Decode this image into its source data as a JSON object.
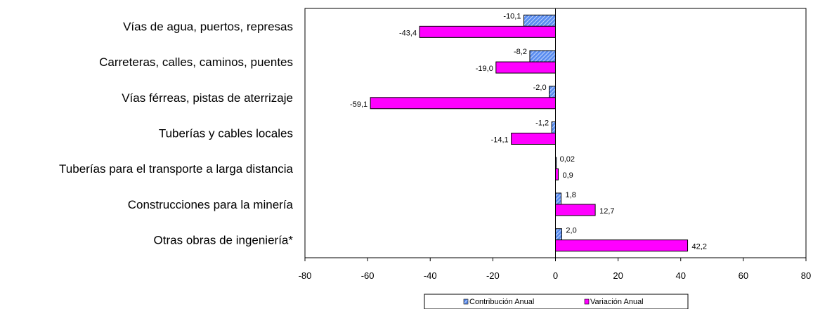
{
  "chart_data": {
    "type": "bar",
    "orientation": "horizontal",
    "categories": [
      "Vías de agua, puertos, represas",
      "Carreteras, calles, caminos, puentes",
      "Vías férreas, pistas de aterrizaje",
      "Tuberías y cables locales",
      "Tuberías para el transporte a larga distancia",
      "Construcciones para la minería",
      "Otras obras de ingeniería*"
    ],
    "series": [
      {
        "name": "Contribución Anual",
        "values": [
          -10.1,
          -8.2,
          -2.0,
          -1.2,
          0.02,
          1.8,
          2.0
        ],
        "labels": [
          "-10,1",
          "-8,2",
          "-2,0",
          "-1,2",
          "0,02",
          "1,8",
          "2,0"
        ],
        "color": "#5b8def",
        "pattern": "diagonal-hatch"
      },
      {
        "name": "Variación Anual",
        "values": [
          -43.4,
          -19.0,
          -59.1,
          -14.1,
          0.9,
          12.7,
          42.2
        ],
        "labels": [
          "-43,4",
          "-19,0",
          "-59,1",
          "-14,1",
          "0,9",
          "12,7",
          "42,2"
        ],
        "color": "#ff00ff"
      }
    ],
    "xlim": [
      -80,
      80
    ],
    "xticks": [
      -80,
      -60,
      -40,
      -20,
      0,
      20,
      40,
      60,
      80
    ],
    "grid": false,
    "legend_position": "bottom-center"
  }
}
